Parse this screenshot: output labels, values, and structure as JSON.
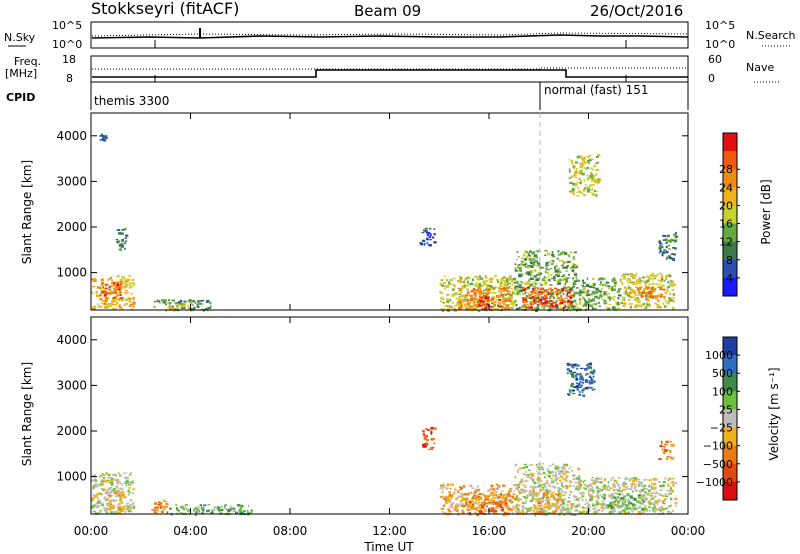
{
  "header": {
    "site": "Stokkseyri (fitACF)",
    "beam": "Beam 09",
    "date": "26/Oct/2016"
  },
  "noise_panel": {
    "left_label": "N.Sky",
    "right_label": "N.Search",
    "left_ticks": [
      "10^5",
      "10^0"
    ],
    "right_ticks": [
      "10^5",
      "10^0"
    ]
  },
  "freq_panel": {
    "left_label_line1": "Freq.",
    "left_label_line2": "[MHz]",
    "right_label": "Nave",
    "left_ticks": [
      "18",
      "8"
    ],
    "right_ticks": [
      "60",
      "0"
    ]
  },
  "cpid_panel": {
    "label": "CPID",
    "segments": [
      {
        "start_hour": 0,
        "text": "themis 3300"
      },
      {
        "start_hour": 18,
        "text": "normal (fast) 151"
      }
    ]
  },
  "chart_data": [
    {
      "type": "heatmap",
      "name": "power",
      "ylabel": "Slant Range [km]",
      "y_ticks": [
        "1000",
        "2000",
        "3000",
        "4000"
      ],
      "ylim": [
        180,
        4500
      ],
      "xlim_hours": [
        0,
        24
      ],
      "colorbar_label": "Power [dB]",
      "colorbar_ticks": [
        "4",
        "8",
        "12",
        "16",
        "20",
        "24",
        "28"
      ],
      "colorbar_colors": [
        "#1a1aff",
        "#2a4fb0",
        "#3c7a4a",
        "#62a93e",
        "#c8d22c",
        "#f0b21a",
        "#f08a10",
        "#ee5a0e",
        "#e01010"
      ],
      "regions": [
        {
          "t0": 0.0,
          "t1": 1.7,
          "r0": 200,
          "r1": 950,
          "level": 5
        },
        {
          "t0": 0.4,
          "t1": 1.2,
          "r0": 450,
          "r1": 800,
          "level": 7
        },
        {
          "t0": 1.0,
          "t1": 1.4,
          "r0": 1500,
          "r1": 2000,
          "level": 2
        },
        {
          "t0": 2.5,
          "t1": 4.8,
          "r0": 180,
          "r1": 420,
          "level": 2
        },
        {
          "t0": 3.0,
          "t1": 4.0,
          "r0": 200,
          "r1": 350,
          "level": 5
        },
        {
          "t0": 13.2,
          "t1": 13.8,
          "r0": 1600,
          "r1": 2000,
          "level": 1
        },
        {
          "t0": 14.0,
          "t1": 17.0,
          "r0": 180,
          "r1": 950,
          "level": 4
        },
        {
          "t0": 14.7,
          "t1": 16.8,
          "r0": 200,
          "r1": 700,
          "level": 6
        },
        {
          "t0": 15.5,
          "t1": 16.4,
          "r0": 250,
          "r1": 500,
          "level": 8
        },
        {
          "t0": 17.0,
          "t1": 19.5,
          "r0": 180,
          "r1": 1500,
          "level": 3
        },
        {
          "t0": 17.3,
          "t1": 19.3,
          "r0": 250,
          "r1": 700,
          "level": 7
        },
        {
          "t0": 18.0,
          "t1": 19.0,
          "r0": 300,
          "r1": 450,
          "level": 8
        },
        {
          "t0": 19.5,
          "t1": 21.3,
          "r0": 200,
          "r1": 900,
          "level": 3
        },
        {
          "t0": 21.3,
          "t1": 23.4,
          "r0": 250,
          "r1": 1000,
          "level": 4
        },
        {
          "t0": 21.8,
          "t1": 23.0,
          "r0": 400,
          "r1": 700,
          "level": 6
        },
        {
          "t0": 22.8,
          "t1": 23.5,
          "r0": 1300,
          "r1": 1900,
          "level": 2
        },
        {
          "t0": 19.2,
          "t1": 20.4,
          "r0": 2700,
          "r1": 3600,
          "level": 4
        },
        {
          "t0": 0.3,
          "t1": 0.6,
          "r0": 3900,
          "r1": 4050,
          "level": 1
        }
      ]
    },
    {
      "type": "heatmap",
      "name": "velocity",
      "ylabel": "Slant Range [km]",
      "y_ticks": [
        "1000",
        "2000",
        "3000",
        "4000"
      ],
      "ylim": [
        180,
        4500
      ],
      "xlim_hours": [
        0,
        24
      ],
      "colorbar_label": "Velocity [m s⁻¹]",
      "colorbar_ticks": [
        "1000",
        "500",
        "100",
        "25",
        "−25",
        "−100",
        "−500",
        "−1000"
      ],
      "colorbar_colors": [
        "#1f3fa0",
        "#2f6fc0",
        "#3d8a4a",
        "#6cc040",
        "#bdbdbd",
        "#f0b01a",
        "#ee7a10",
        "#e04a10",
        "#d81010"
      ],
      "regions": [
        {
          "t0": 0.0,
          "t1": 1.7,
          "r0": 200,
          "r1": 1100,
          "level": 4
        },
        {
          "t0": 0.5,
          "t1": 1.3,
          "r0": 300,
          "r1": 700,
          "level": 5
        },
        {
          "t0": 2.4,
          "t1": 3.0,
          "r0": 200,
          "r1": 500,
          "level": 6
        },
        {
          "t0": 3.0,
          "t1": 6.5,
          "r0": 180,
          "r1": 400,
          "level": 3
        },
        {
          "t0": 13.3,
          "t1": 13.8,
          "r0": 1600,
          "r1": 2100,
          "level": 7
        },
        {
          "t0": 14.0,
          "t1": 17.2,
          "r0": 180,
          "r1": 850,
          "level": 5
        },
        {
          "t0": 15.0,
          "t1": 16.8,
          "r0": 200,
          "r1": 650,
          "level": 6
        },
        {
          "t0": 17.0,
          "t1": 19.6,
          "r0": 180,
          "r1": 1300,
          "level": 4
        },
        {
          "t0": 17.6,
          "t1": 19.0,
          "r0": 200,
          "r1": 700,
          "level": 5
        },
        {
          "t0": 19.5,
          "t1": 23.5,
          "r0": 200,
          "r1": 1000,
          "level": 4
        },
        {
          "t0": 20.5,
          "t1": 22.5,
          "r0": 300,
          "r1": 650,
          "level": 3
        },
        {
          "t0": 22.8,
          "t1": 23.4,
          "r0": 1400,
          "r1": 1800,
          "level": 6
        },
        {
          "t0": 19.1,
          "t1": 20.2,
          "r0": 2800,
          "r1": 3500,
          "level": 1
        }
      ]
    }
  ],
  "time_axis": {
    "label": "Time UT",
    "ticks": [
      "00:00",
      "04:00",
      "08:00",
      "12:00",
      "16:00",
      "20:00",
      "00:00"
    ]
  }
}
